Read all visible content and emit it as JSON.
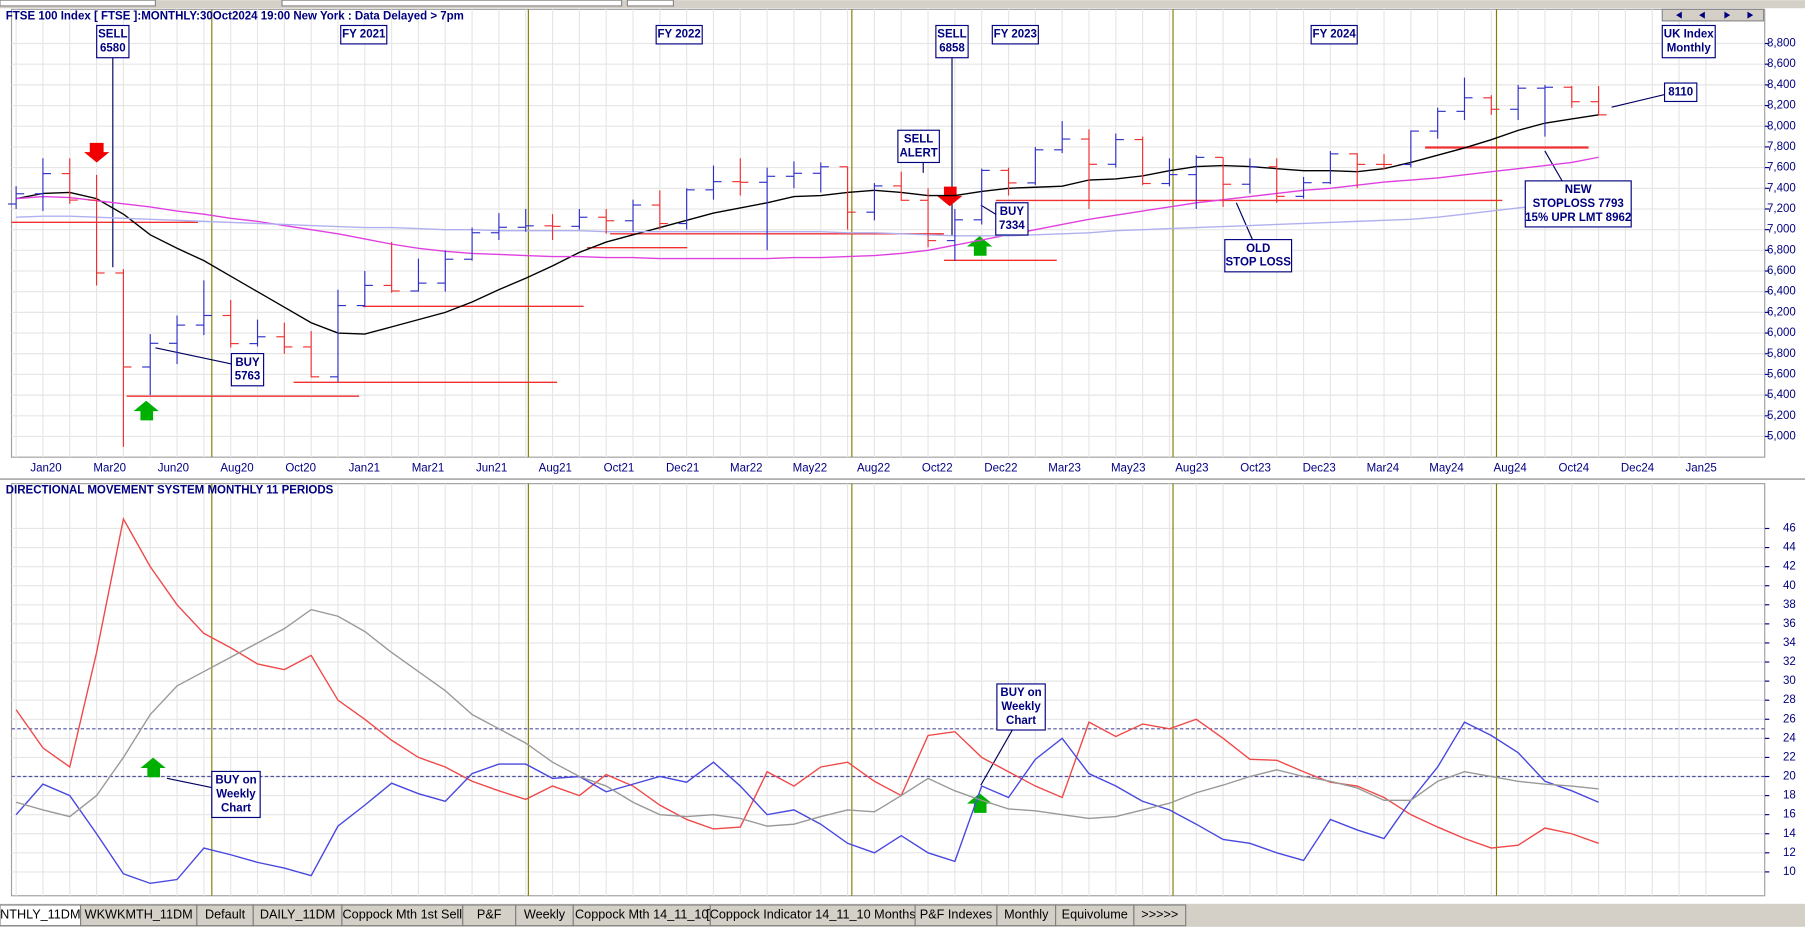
{
  "tabs": [
    "NTHLY_11DM",
    "WKWKMTH_11DM",
    "Default",
    "DAILY_11DM",
    "Coppock Mth 1st Sell",
    "P&F",
    "Weekly",
    "Coppock Mth 14_11_10",
    "[Coppock Indicator 14_11_10 Months]",
    "P&F Indexes",
    "Monthly",
    "Equivolume",
    ">>>>>"
  ],
  "chart_data": [
    {
      "type": "ohlc",
      "title": "FTSE 100 Index [ FTSE ]:MONTHLY:30Oct2024 19:00 New York : Data Delayed > 7pm",
      "x_axis_labels": [
        "Jan20",
        "Mar20",
        "Jun20",
        "Aug20",
        "Oct20",
        "Jan21",
        "Mar21",
        "Jun21",
        "Aug21",
        "Oct21",
        "Dec21",
        "Mar22",
        "May22",
        "Aug22",
        "Oct22",
        "Dec22",
        "Mar23",
        "May23",
        "Aug23",
        "Oct23",
        "Dec23",
        "Mar24",
        "May24",
        "Aug24",
        "Oct24",
        "Dec24",
        "Jan25"
      ],
      "up_color": "#3030c8",
      "down_color": "#f03030",
      "open": [
        7248,
        7347,
        7542,
        7286,
        6581,
        5672,
        5901,
        6077,
        6170,
        5898,
        5964,
        5866,
        5577,
        6266,
        6461,
        6407,
        6483,
        6714,
        6970,
        7023,
        7037,
        7032,
        7120,
        7086,
        7238,
        7059,
        7385,
        7464,
        7458,
        7516,
        7545,
        7608,
        7169,
        7423,
        7284,
        6894,
        7095,
        7573,
        7452,
        7772,
        7876,
        7632,
        7871,
        7446,
        7532,
        7699,
        7439,
        7608,
        7322,
        7454,
        7733,
        7631,
        7630,
        7953,
        8144,
        8275,
        8164,
        8368,
        8377,
        8237
      ],
      "high": [
        7420,
        7690,
        7690,
        7530,
        6620,
        5990,
        6170,
        6510,
        6320,
        6130,
        6100,
        6020,
        6420,
        6600,
        6880,
        6720,
        6800,
        7020,
        7160,
        7200,
        7150,
        7200,
        7200,
        7290,
        7380,
        7400,
        7620,
        7690,
        7600,
        7660,
        7650,
        7610,
        7450,
        7560,
        7400,
        7200,
        7590,
        7600,
        7800,
        8050,
        7970,
        7930,
        7900,
        7690,
        7720,
        7700,
        7690,
        7690,
        7510,
        7760,
        7740,
        7730,
        7960,
        8180,
        8470,
        8300,
        8400,
        8400,
        8390,
        8390
      ],
      "low": [
        7200,
        7180,
        7250,
        6460,
        4899,
        5400,
        5700,
        5980,
        5860,
        5870,
        5800,
        5570,
        5530,
        6250,
        6390,
        6400,
        6400,
        6700,
        6900,
        6980,
        6900,
        7000,
        6960,
        6980,
        7000,
        7000,
        7290,
        7330,
        6800,
        7400,
        7360,
        7000,
        7090,
        7280,
        6830,
        6700,
        7050,
        7330,
        7430,
        7740,
        7200,
        7600,
        7430,
        7420,
        7200,
        7220,
        7350,
        7260,
        7300,
        7440,
        7400,
        7580,
        7600,
        7880,
        8060,
        8110,
        8060,
        7900,
        8180,
        8110
      ],
      "close": [
        7347,
        7542,
        7286,
        6581,
        5672,
        5901,
        6077,
        6170,
        5898,
        5964,
        5866,
        5577,
        6266,
        6461,
        6407,
        6483,
        6714,
        6970,
        7023,
        7037,
        7032,
        7120,
        7086,
        7238,
        7059,
        7385,
        7464,
        7458,
        7516,
        7545,
        7608,
        7169,
        7423,
        7284,
        6894,
        7095,
        7573,
        7452,
        7772,
        7876,
        7632,
        7871,
        7446,
        7532,
        7699,
        7439,
        7608,
        7322,
        7454,
        7733,
        7631,
        7630,
        7953,
        8144,
        8275,
        8164,
        8368,
        8377,
        8237,
        8110
      ],
      "series": [
        {
          "color": "#000000",
          "values": [
            7300,
            7350,
            7360,
            7300,
            7150,
            6950,
            6820,
            6700,
            6550,
            6400,
            6250,
            6100,
            6000,
            5990,
            6060,
            6130,
            6200,
            6300,
            6420,
            6530,
            6650,
            6780,
            6880,
            6950,
            7020,
            7090,
            7160,
            7210,
            7260,
            7320,
            7330,
            7360,
            7380,
            7360,
            7330,
            7330,
            7370,
            7400,
            7410,
            7420,
            7480,
            7490,
            7520,
            7570,
            7610,
            7620,
            7610,
            7590,
            7570,
            7570,
            7560,
            7590,
            7650,
            7720,
            7790,
            7870,
            7960,
            8030,
            8070,
            8110
          ]
        },
        {
          "color": "#e040e0",
          "values": [
            7300,
            7320,
            7310,
            7280,
            7250,
            7220,
            7180,
            7150,
            7110,
            7080,
            7040,
            7000,
            6960,
            6910,
            6860,
            6820,
            6790,
            6770,
            6760,
            6750,
            6740,
            6740,
            6730,
            6730,
            6720,
            6720,
            6720,
            6720,
            6720,
            6730,
            6730,
            6740,
            6750,
            6770,
            6800,
            6850,
            6900,
            6950,
            7000,
            7050,
            7100,
            7140,
            7180,
            7220,
            7260,
            7290,
            7320,
            7350,
            7380,
            7400,
            7430,
            7460,
            7480,
            7500,
            7530,
            7560,
            7590,
            7620,
            7650,
            7700
          ]
        },
        {
          "color": "#b0b0f0",
          "values": [
            7120,
            7130,
            7130,
            7120,
            7110,
            7100,
            7090,
            7080,
            7070,
            7060,
            7050,
            7040,
            7030,
            7020,
            7020,
            7010,
            7000,
            7000,
            6990,
            6990,
            6990,
            6990,
            6980,
            6980,
            6980,
            6980,
            6980,
            6980,
            6980,
            6980,
            6980,
            6970,
            6970,
            6960,
            6950,
            6940,
            6940,
            6940,
            6950,
            6960,
            6970,
            6990,
            7000,
            7010,
            7020,
            7030,
            7040,
            7050,
            7060,
            7070,
            7080,
            7090,
            7100,
            7120,
            7150,
            7180,
            7210,
            7240,
            7270,
            7300
          ]
        }
      ],
      "ylim": [
        4800,
        9130
      ],
      "yticks": [
        {
          "value": 5000,
          "label": "5,000"
        },
        {
          "value": 5200,
          "label": "5,200"
        },
        {
          "value": 5400,
          "label": "5,400"
        },
        {
          "value": 5600,
          "label": "5,600"
        },
        {
          "value": 5800,
          "label": "5,800"
        },
        {
          "value": 6000,
          "label": "6,000"
        },
        {
          "value": 6200,
          "label": "6,200"
        },
        {
          "value": 6400,
          "label": "6,400"
        },
        {
          "value": 6600,
          "label": "6,600"
        },
        {
          "value": 6800,
          "label": "6,800"
        },
        {
          "value": 7000,
          "label": "7,000"
        },
        {
          "value": 7200,
          "label": "7,200"
        },
        {
          "value": 7400,
          "label": "7,400"
        },
        {
          "value": 7600,
          "label": "7,600"
        },
        {
          "value": 7800,
          "label": "7,800"
        },
        {
          "value": 8000,
          "label": "8,000"
        },
        {
          "value": 8200,
          "label": "8,200"
        },
        {
          "value": 8400,
          "label": "8,400"
        },
        {
          "value": 8600,
          "label": "8,600"
        },
        {
          "value": 8800,
          "label": "8,800"
        }
      ],
      "grid": true,
      "annotations": [
        {
          "lines": [
            "SELL",
            "6580"
          ]
        },
        {
          "lines": [
            "FY 2021"
          ]
        },
        {
          "lines": [
            "FY 2022"
          ]
        },
        {
          "lines": [
            "SELL",
            "6858"
          ]
        },
        {
          "lines": [
            "FY 2023"
          ]
        },
        {
          "lines": [
            "FY 2024"
          ]
        },
        {
          "lines": [
            "UK Index",
            "Monthly"
          ]
        },
        {
          "lines": [
            "SELL",
            "ALERT"
          ]
        },
        {
          "lines": [
            "BUY",
            "7334"
          ]
        },
        {
          "lines": [
            "BUY",
            "5763"
          ]
        },
        {
          "lines": [
            "OLD",
            "STOP LOSS"
          ]
        },
        {
          "lines": [
            "NEW",
            "STOPLOSS 7793",
            "15% UPR LMT 8962"
          ]
        },
        {
          "lines": [
            "8110"
          ]
        }
      ]
    },
    {
      "type": "line",
      "title": "DIRECTIONAL MOVEMENT SYSTEM MONTHLY 11 PERIODS",
      "series": [
        {
          "color": "#f04848",
          "values": [
            27,
            23,
            21,
            33,
            47,
            42,
            38,
            35,
            33.5,
            31.8,
            31.2,
            32.7,
            28,
            26,
            23.8,
            22,
            21,
            19.5,
            18.5,
            17.6,
            19,
            18,
            20.2,
            19,
            17,
            15.5,
            14.5,
            14.7,
            20.5,
            19,
            21,
            21.5,
            19.5,
            18,
            24.3,
            24.7,
            22,
            20.5,
            19,
            17.8,
            25.7,
            24.2,
            25.5,
            25,
            26,
            24,
            21.8,
            21.7,
            20.5,
            19.4,
            19,
            17.8,
            16,
            14.7,
            13.5,
            12.5,
            12.8,
            14.6,
            14,
            13
          ]
        },
        {
          "color": "#4848e0",
          "values": [
            16,
            19.2,
            18,
            14,
            9.8,
            8.8,
            9.2,
            12.5,
            11.8,
            11,
            10.4,
            9.6,
            14.8,
            17,
            19.3,
            18.2,
            17.4,
            20.3,
            21.3,
            21.3,
            19.8,
            20,
            18.4,
            19.2,
            20,
            19.4,
            21.5,
            19,
            16,
            16.5,
            15,
            13,
            12,
            13.8,
            12,
            11.1,
            19,
            17.8,
            21.8,
            24,
            20.3,
            19,
            17.4,
            16.5,
            15,
            13.4,
            13,
            12,
            11.2,
            15.5,
            14.4,
            13.5,
            17.5,
            21,
            25.7,
            24.3,
            22.5,
            19.5,
            18.5,
            17.3
          ]
        },
        {
          "color": "#999999",
          "values": [
            17.3,
            16.5,
            15.8,
            18,
            22,
            26.5,
            29.5,
            31,
            32.5,
            34,
            35.5,
            37.5,
            36.8,
            35.2,
            33,
            31,
            29,
            26.5,
            25,
            23.5,
            21.5,
            20,
            19,
            17.3,
            16,
            15.8,
            16,
            15.6,
            14.8,
            15,
            15.8,
            16.5,
            16.3,
            18,
            19.8,
            18.5,
            17.5,
            16.6,
            16.4,
            16,
            15.6,
            15.8,
            16.5,
            17.2,
            18.3,
            19.1,
            20,
            20.7,
            20,
            19.5,
            18.8,
            17.5,
            17.5,
            19.5,
            20.5,
            20,
            19.5,
            19.2,
            19,
            18.7
          ]
        }
      ],
      "reference_lines": [
        25,
        20
      ],
      "ylim": [
        7.5,
        50.7
      ],
      "yticks": [
        10,
        12,
        14,
        16,
        18,
        20,
        22,
        24,
        26,
        28,
        30,
        32,
        34,
        36,
        38,
        40,
        42,
        44,
        46
      ],
      "grid": true,
      "annotations": [
        {
          "lines": [
            "BUY on",
            "Weekly",
            "Chart"
          ]
        },
        {
          "lines": [
            "BUY on",
            "Weekly",
            "Chart"
          ]
        }
      ]
    }
  ]
}
